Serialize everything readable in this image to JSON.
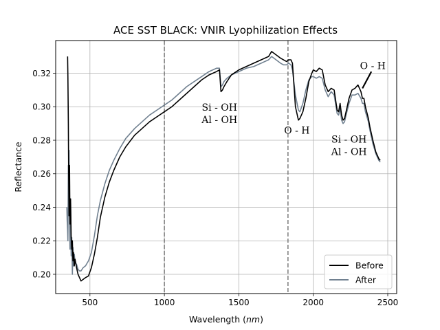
{
  "chart_data": {
    "type": "line",
    "title": "ACE SST BLACK: VNIR Lyophilization Effects",
    "xlabel_text": "Wavelength (",
    "xlabel_unit": "nm",
    "xlabel_close": ")",
    "ylabel": "Reflectance",
    "xlim": [
      270,
      2560
    ],
    "ylim": [
      0.1885,
      0.3395
    ],
    "xticks": [
      500,
      1000,
      1500,
      2000,
      2500
    ],
    "yticks": [
      0.2,
      0.22,
      0.24,
      0.26,
      0.28,
      0.3,
      0.32
    ],
    "ytick_labels": [
      "0.20",
      "0.22",
      "0.24",
      "0.26",
      "0.28",
      "0.30",
      "0.32"
    ],
    "grid": true,
    "legend": "bottom-right",
    "vlines": [
      1000,
      1830
    ],
    "series": [
      {
        "name": "Before",
        "color": "#000000",
        "x": [
          350,
          352,
          355,
          357,
          360,
          363,
          366,
          370,
          374,
          378,
          382,
          386,
          390,
          395,
          400,
          410,
          420,
          430,
          440,
          455,
          470,
          490,
          510,
          530,
          550,
          570,
          600,
          630,
          660,
          700,
          740,
          800,
          850,
          900,
          950,
          1000,
          1050,
          1100,
          1150,
          1200,
          1250,
          1300,
          1350,
          1370,
          1380,
          1390,
          1400,
          1420,
          1450,
          1500,
          1550,
          1600,
          1650,
          1700,
          1720,
          1750,
          1780,
          1800,
          1820,
          1835,
          1850,
          1860,
          1880,
          1900,
          1910,
          1930,
          1950,
          1970,
          1990,
          2000,
          2020,
          2040,
          2060,
          2080,
          2100,
          2120,
          2140,
          2160,
          2170,
          2180,
          2190,
          2200,
          2210,
          2220,
          2240,
          2260,
          2280,
          2300,
          2320,
          2330,
          2340,
          2350,
          2370,
          2380,
          2400,
          2420,
          2440,
          2450
        ],
        "y": [
          0.33,
          0.318,
          0.29,
          0.26,
          0.235,
          0.265,
          0.23,
          0.245,
          0.222,
          0.215,
          0.22,
          0.208,
          0.213,
          0.205,
          0.209,
          0.204,
          0.2,
          0.198,
          0.196,
          0.197,
          0.198,
          0.199,
          0.204,
          0.212,
          0.222,
          0.234,
          0.246,
          0.255,
          0.262,
          0.27,
          0.276,
          0.283,
          0.287,
          0.291,
          0.294,
          0.297,
          0.3,
          0.304,
          0.308,
          0.312,
          0.316,
          0.319,
          0.321,
          0.322,
          0.309,
          0.31,
          0.312,
          0.315,
          0.319,
          0.322,
          0.324,
          0.326,
          0.328,
          0.33,
          0.333,
          0.331,
          0.329,
          0.328,
          0.327,
          0.328,
          0.328,
          0.326,
          0.3,
          0.292,
          0.293,
          0.297,
          0.305,
          0.315,
          0.32,
          0.322,
          0.321,
          0.323,
          0.322,
          0.313,
          0.309,
          0.311,
          0.31,
          0.298,
          0.297,
          0.302,
          0.295,
          0.292,
          0.293,
          0.297,
          0.305,
          0.31,
          0.311,
          0.313,
          0.309,
          0.305,
          0.305,
          0.3,
          0.293,
          0.288,
          0.28,
          0.273,
          0.269,
          0.268
        ]
      },
      {
        "name": "After",
        "color": "#708090",
        "x": [
          345,
          347,
          350,
          352,
          355,
          358,
          360,
          363,
          366,
          370,
          374,
          378,
          382,
          386,
          390,
          395,
          400,
          410,
          420,
          430,
          440,
          455,
          470,
          490,
          510,
          530,
          550,
          570,
          600,
          630,
          660,
          700,
          740,
          800,
          850,
          900,
          950,
          1000,
          1050,
          1100,
          1150,
          1200,
          1250,
          1300,
          1350,
          1370,
          1380,
          1390,
          1400,
          1420,
          1450,
          1500,
          1550,
          1600,
          1650,
          1700,
          1720,
          1750,
          1780,
          1800,
          1820,
          1835,
          1850,
          1860,
          1880,
          1900,
          1910,
          1930,
          1950,
          1970,
          1990,
          2000,
          2020,
          2040,
          2060,
          2080,
          2100,
          2120,
          2140,
          2160,
          2170,
          2180,
          2190,
          2200,
          2210,
          2220,
          2240,
          2260,
          2280,
          2300,
          2320,
          2330,
          2340,
          2350,
          2370,
          2380,
          2400,
          2420,
          2440,
          2450
        ],
        "y": [
          0.24,
          0.232,
          0.226,
          0.22,
          0.265,
          0.235,
          0.274,
          0.23,
          0.215,
          0.245,
          0.211,
          0.222,
          0.2,
          0.216,
          0.205,
          0.212,
          0.207,
          0.206,
          0.203,
          0.202,
          0.202,
          0.204,
          0.205,
          0.208,
          0.213,
          0.223,
          0.235,
          0.244,
          0.254,
          0.262,
          0.268,
          0.275,
          0.281,
          0.287,
          0.291,
          0.295,
          0.298,
          0.301,
          0.304,
          0.308,
          0.312,
          0.315,
          0.318,
          0.321,
          0.323,
          0.323,
          0.312,
          0.313,
          0.315,
          0.317,
          0.319,
          0.321,
          0.323,
          0.324,
          0.326,
          0.328,
          0.33,
          0.328,
          0.326,
          0.325,
          0.325,
          0.326,
          0.325,
          0.322,
          0.307,
          0.298,
          0.297,
          0.302,
          0.31,
          0.316,
          0.318,
          0.318,
          0.317,
          0.318,
          0.317,
          0.31,
          0.306,
          0.309,
          0.307,
          0.296,
          0.295,
          0.299,
          0.292,
          0.29,
          0.291,
          0.295,
          0.302,
          0.307,
          0.307,
          0.308,
          0.305,
          0.302,
          0.302,
          0.297,
          0.291,
          0.286,
          0.278,
          0.272,
          0.268,
          0.267
        ]
      }
    ],
    "annotations": [
      {
        "lines": [
          "Si - OH",
          "Al - OH"
        ],
        "x": 1370,
        "y": 0.2977
      },
      {
        "lines": [
          "O - H"
        ],
        "x": 1890,
        "y": 0.2838
      },
      {
        "lines": [
          "Si - OH",
          "Al - OH"
        ],
        "x": 2240,
        "y": 0.2785
      },
      {
        "lines": [
          "O - H"
        ],
        "x": 2400,
        "y": 0.3225
      }
    ],
    "arrows": [
      {
        "from": [
          2330,
          0.311
        ],
        "to": [
          2390,
          0.321
        ]
      }
    ]
  }
}
